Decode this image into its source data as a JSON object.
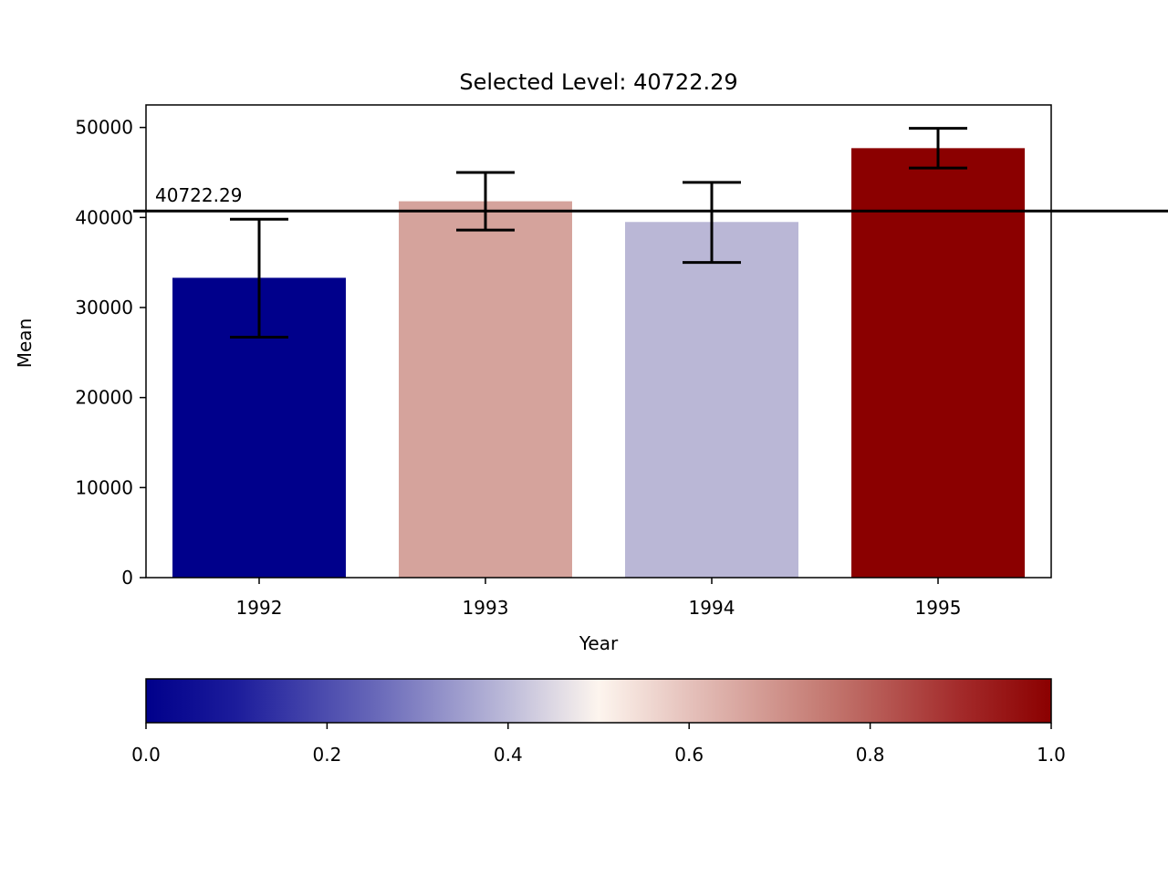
{
  "chart_data": {
    "type": "bar",
    "title": "Selected Level: 40722.29",
    "xlabel": "Year",
    "ylabel": "Mean",
    "categories": [
      "1992",
      "1993",
      "1994",
      "1995"
    ],
    "values": [
      33300,
      41800,
      39500,
      47700
    ],
    "error_low": [
      26700,
      38600,
      35000,
      45500
    ],
    "error_high": [
      39800,
      45000,
      43900,
      49900
    ],
    "bar_colors": [
      "#00008b",
      "#d5a39c",
      "#bab7d6",
      "#8b0000"
    ],
    "ylim": [
      0,
      52500
    ],
    "yticks": [
      "0",
      "10000",
      "20000",
      "30000",
      "40000",
      "50000"
    ],
    "ytick_values": [
      0,
      10000,
      20000,
      30000,
      40000,
      50000
    ],
    "reference_line": {
      "value": 40722.29,
      "label": "40722.29"
    },
    "grid": false,
    "colorbar": {
      "colormap": "seismic",
      "range": [
        0.0,
        1.0
      ],
      "ticks": [
        "0.0",
        "0.2",
        "0.4",
        "0.6",
        "0.8",
        "1.0"
      ],
      "tick_values": [
        0.0,
        0.2,
        0.4,
        0.6,
        0.8,
        1.0
      ],
      "stops": [
        "#00008b",
        "#ffffff",
        "#8b0000"
      ],
      "orientation": "horizontal",
      "placement": "below"
    }
  }
}
